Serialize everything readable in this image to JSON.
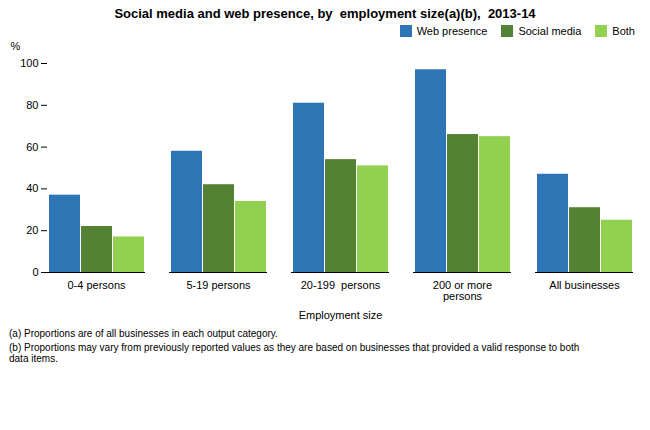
{
  "chart_data": {
    "type": "bar",
    "title": "Social media and web presence, by  employment size(a)(b),  2013-14",
    "xlabel": "Employment size",
    "ylabel": "%",
    "categories": [
      "0-4 persons",
      "5-19 persons",
      "20-199  persons",
      "200 or more\npersons",
      "All businesses"
    ],
    "series": [
      {
        "name": "Web presence",
        "color": "#2E75B6",
        "values": [
          37,
          58,
          81,
          97,
          47
        ]
      },
      {
        "name": "Social media",
        "color": "#548235",
        "values": [
          22,
          42,
          54,
          66,
          31
        ]
      },
      {
        "name": "Both",
        "color": "#92D050",
        "values": [
          17,
          34,
          51,
          65,
          25
        ]
      }
    ],
    "ylim": [
      0,
      100
    ],
    "yticks": [
      0,
      20,
      40,
      60,
      80,
      100
    ],
    "grid": false,
    "legend": "upper right",
    "annotations": [
      "(a) Proportions are of all businesses in each output category.",
      "(b) Proportions may vary from previously reported values as they are based on businesses that provided a valid response to both\ndata items."
    ]
  }
}
